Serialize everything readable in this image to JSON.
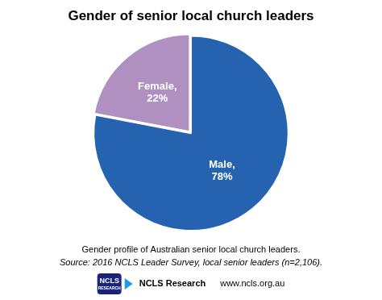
{
  "chart_data": {
    "type": "pie",
    "title": "Gender of senior local church leaders",
    "values": [
      78,
      22
    ],
    "value_labels": [
      "Male,\n78%",
      "Female,\n22%"
    ],
    "colors": [
      "#2563B0",
      "#B090C0"
    ],
    "data_labels": true,
    "annotations": [
      "Gender profile of Australian senior local church leaders.",
      "Source: 2016 NCLS Leader Survey, local senior leaders (n=2,106).",
      "NCLS",
      "RESEARCH",
      "NCLS Research",
      "www.ncls.org.au"
    ]
  }
}
